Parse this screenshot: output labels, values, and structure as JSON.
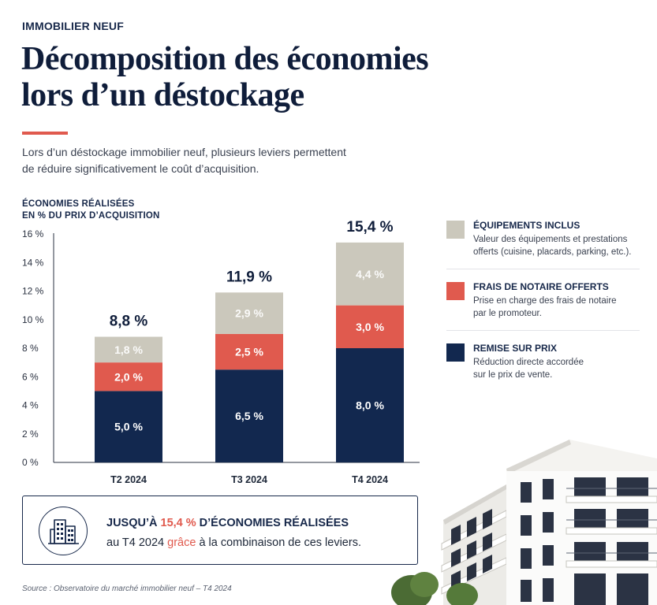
{
  "header": {
    "kicker": "IMMOBILIER NEUF",
    "title_line1": "Décomposition des économies",
    "title_line2": "lors d’un déstockage",
    "intro_line1": "Lors d’un déstockage immobilier neuf, plusieurs leviers permettent",
    "intro_line2": "de réduire significativement le coût d’acquisition."
  },
  "colors": {
    "navy": "#12284f",
    "coral": "#e05a4e",
    "beige": "#cbc8bc",
    "accent_rule": "#e05a4e"
  },
  "chart_data": {
    "type": "bar",
    "stacked": true,
    "ylabel_line1": "ÉCONOMIES RÉALISÉES",
    "ylabel_line2": "EN % DU PRIX D’ACQUISITION",
    "ylim": [
      0,
      16
    ],
    "yticks": [
      0,
      2,
      4,
      6,
      8,
      10,
      12,
      14,
      16
    ],
    "ytick_labels": [
      "0 %",
      "2 %",
      "4 %",
      "6 %",
      "8 %",
      "10 %",
      "12 %",
      "14 %",
      "16 %"
    ],
    "categories": [
      "T2 2024",
      "T3 2024",
      "T4 2024"
    ],
    "series": [
      {
        "name": "REMISE SUR PRIX",
        "color": "#12284f",
        "values": [
          5.0,
          6.5,
          8.0
        ],
        "labels": [
          "5,0 %",
          "6,5 %",
          "8,0 %"
        ]
      },
      {
        "name": "FRAIS DE NOTAIRE OFFERTS",
        "color": "#e05a4e",
        "values": [
          2.0,
          2.5,
          3.0
        ],
        "labels": [
          "2,0 %",
          "2,5 %",
          "3,0 %"
        ]
      },
      {
        "name": "ÉQUIPEMENTS INCLUS",
        "color": "#cbc8bc",
        "values": [
          1.8,
          2.9,
          4.4
        ],
        "labels": [
          "1,8 %",
          "2,9 %",
          "4,4 %"
        ]
      }
    ],
    "totals": [
      8.8,
      11.9,
      15.4
    ],
    "total_labels": [
      "8,8 %",
      "11,9 %",
      "15,4 %"
    ],
    "grid": false,
    "legend_placement": "right"
  },
  "legend": {
    "items": [
      {
        "title": "ÉQUIPEMENTS INCLUS",
        "desc_line1": "Valeur des équipements et prestations",
        "desc_line2": "offerts (cuisine, placards, parking, etc.).",
        "color": "#cbc8bc"
      },
      {
        "title": "FRAIS DE NOTAIRE OFFERTS",
        "desc_line1": "Prise en charge des frais de notaire",
        "desc_line2": "par le promoteur.",
        "color": "#e05a4e"
      },
      {
        "title": "REMISE SUR PRIX",
        "desc_line1": "Réduction directe accordée",
        "desc_line2": "sur le prix de vente.",
        "color": "#12284f"
      }
    ]
  },
  "callout": {
    "icon": "building-icon",
    "l1_a": "JUSQU’À ",
    "l1_b": "15,4 %",
    "l1_c": " D’ÉCONOMIES RÉALISÉES",
    "l2_a": "au T4 2024 ",
    "l2_b": "grâce",
    "l2_c": " à la combinaison de ces leviers."
  },
  "footer": {
    "source": "Source : Observatoire du marché immobilier neuf – T4 2024"
  }
}
